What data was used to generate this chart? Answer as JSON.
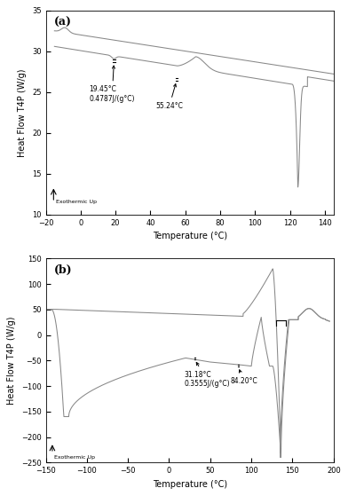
{
  "panel_a": {
    "label": "(a)",
    "xlim": [
      -20,
      145
    ],
    "ylim": [
      10,
      35
    ],
    "xlabel": "Temperature (°C)",
    "ylabel": "Heat Flow T4P (W/g)",
    "yticks": [
      10,
      15,
      20,
      25,
      30,
      35
    ],
    "xticks": [
      -20,
      0,
      20,
      40,
      60,
      80,
      100,
      120,
      140
    ],
    "ann1_text": "19.45°C\n0.4787J/(g°C)",
    "ann2_text": "55.24°C",
    "exo_text": "Exothermic Up"
  },
  "panel_b": {
    "label": "(b)",
    "xlim": [
      -150,
      200
    ],
    "ylim": [
      -250,
      150
    ],
    "xlabel": "Temperature (°C)",
    "ylabel": "Heat Flow T4P (W/g)",
    "yticks": [
      -250,
      -200,
      -150,
      -100,
      -50,
      0,
      50,
      100,
      150
    ],
    "xticks": [
      -150,
      -100,
      -50,
      0,
      50,
      100,
      150,
      200
    ],
    "ann1_text": "31.18°C\n0.3555J/(g°C)",
    "ann2_text": "84.20°C",
    "exo_text": "Exothermic Up"
  },
  "line_color": "#888888",
  "bg_color": "#ffffff",
  "fig_bg": "#ffffff"
}
